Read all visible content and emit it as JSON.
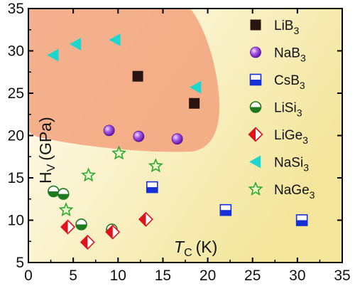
{
  "chart_data": {
    "type": "scatter",
    "title": "",
    "xlabel": {
      "main": "T",
      "sub": "C",
      "unit": "(K)"
    },
    "ylabel": {
      "main": "H",
      "sub": "V",
      "unit": "(GPa)"
    },
    "xlim": [
      0,
      35
    ],
    "ylim": [
      5,
      35
    ],
    "xticks": [
      0,
      5,
      10,
      15,
      20,
      25,
      30,
      35
    ],
    "yticks": [
      5,
      10,
      15,
      20,
      25,
      30,
      35
    ],
    "grid": false,
    "legend_position": "right",
    "background": {
      "gradient_from": "#fffdf5",
      "gradient_to": "#f3e59a"
    },
    "highlight_region": {
      "color": "#f2a27c",
      "shape": "rounded region top-left"
    },
    "series": [
      {
        "name": "LiB",
        "sub": "3",
        "marker": "square",
        "color": "#2a1410",
        "points": [
          [
            12.2,
            27.0
          ],
          [
            18.5,
            23.8
          ]
        ]
      },
      {
        "name": "NaB",
        "sub": "3",
        "marker": "sphere",
        "color": "#8a2fd1",
        "points": [
          [
            9.0,
            20.6
          ],
          [
            12.3,
            19.9
          ],
          [
            16.6,
            19.6
          ]
        ]
      },
      {
        "name": "CsB",
        "sub": "3",
        "marker": "half-square",
        "color": "#1430d6",
        "points": [
          [
            13.8,
            13.9
          ],
          [
            22.0,
            11.2
          ],
          [
            30.5,
            10.0
          ]
        ]
      },
      {
        "name": "LiSi",
        "sub": "3",
        "marker": "half-circle",
        "color": "#1f7a1f",
        "points": [
          [
            2.8,
            13.4
          ],
          [
            3.9,
            13.1
          ],
          [
            5.9,
            9.5
          ],
          [
            9.3,
            8.9
          ]
        ]
      },
      {
        "name": "LiGe",
        "sub": "3",
        "marker": "half-diamond",
        "color": "#e0121a",
        "points": [
          [
            4.4,
            9.2
          ],
          [
            6.6,
            7.4
          ],
          [
            9.4,
            8.6
          ],
          [
            13.1,
            10.1
          ]
        ]
      },
      {
        "name": "NaSi",
        "sub": "3",
        "marker": "left-triangle",
        "color": "#1fd6cf",
        "points": [
          [
            2.8,
            29.5
          ],
          [
            5.3,
            30.8
          ],
          [
            9.7,
            31.3
          ],
          [
            18.7,
            25.7
          ]
        ]
      },
      {
        "name": "NaGe",
        "sub": "3",
        "marker": "star",
        "color": "#2ea82e",
        "points": [
          [
            4.2,
            11.2
          ],
          [
            6.7,
            15.3
          ],
          [
            10.1,
            17.9
          ],
          [
            14.2,
            16.4
          ]
        ]
      }
    ]
  }
}
